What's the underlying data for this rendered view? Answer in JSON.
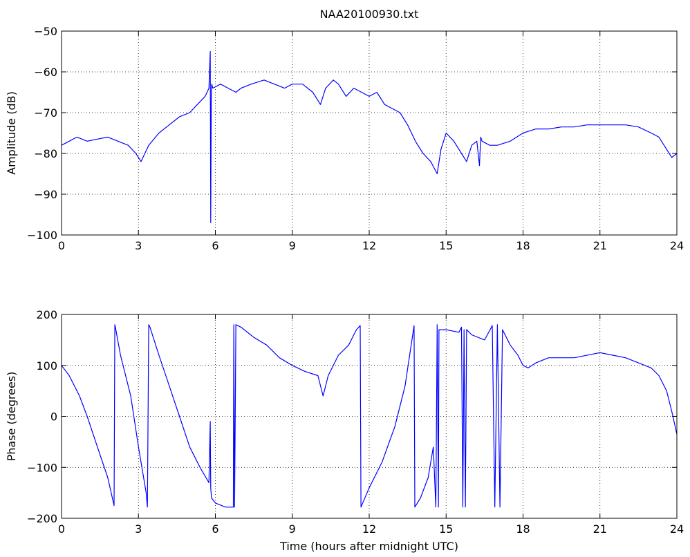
{
  "figure": {
    "title": "NAA20100930.txt"
  },
  "chart_data": [
    {
      "type": "line",
      "title": "NAA20100930.txt",
      "xlabel": "",
      "ylabel": "Amplitude (dB)",
      "xlim": [
        0,
        24
      ],
      "ylim": [
        -100,
        -50
      ],
      "xticks": [
        0,
        3,
        6,
        9,
        12,
        15,
        18,
        21,
        24
      ],
      "yticks": [
        -50,
        -60,
        -70,
        -80,
        -90,
        -100
      ],
      "grid": true,
      "color": "#0000ff",
      "series": [
        {
          "x": [
            0,
            0.3,
            0.6,
            1.0,
            1.4,
            1.8,
            2.2,
            2.6,
            2.9,
            3.1,
            3.4,
            3.8,
            4.2,
            4.6,
            5.0,
            5.3,
            5.6,
            5.75,
            5.8,
            5.82,
            5.84,
            5.86,
            5.9,
            6.2,
            6.5,
            6.8,
            7.0,
            7.4,
            7.9,
            8.3,
            8.7,
            9.0,
            9.4,
            9.8,
            10.1,
            10.3,
            10.6,
            10.8,
            11.1,
            11.4,
            11.7,
            12.0,
            12.3,
            12.6,
            12.9,
            13.2,
            13.5,
            13.8,
            14.1,
            14.4,
            14.65,
            14.8,
            15.0,
            15.3,
            15.6,
            15.8,
            16.0,
            16.2,
            16.3,
            16.35,
            16.4,
            16.7,
            17.0,
            17.5,
            18.0,
            18.5,
            19.0,
            19.5,
            20.0,
            20.5,
            21.0,
            21.5,
            22.0,
            22.5,
            23.0,
            23.3,
            23.6,
            23.8,
            24.0
          ],
          "y": [
            -78,
            -77,
            -76,
            -77,
            -76.5,
            -76,
            -77,
            -78,
            -80,
            -82,
            -78,
            -75,
            -73,
            -71,
            -70,
            -68,
            -66,
            -64,
            -55,
            -97,
            -65,
            -63,
            -64,
            -63,
            -64,
            -65,
            -64,
            -63,
            -62,
            -63,
            -64,
            -63,
            -63,
            -65,
            -68,
            -64,
            -62,
            -63,
            -66,
            -64,
            -65,
            -66,
            -65,
            -68,
            -69,
            -70,
            -73,
            -77,
            -80,
            -82,
            -85,
            -79,
            -75,
            -77,
            -80,
            -82,
            -78,
            -77,
            -83,
            -76,
            -77,
            -78,
            -78,
            -77,
            -75,
            -74,
            -74,
            -73.5,
            -73.5,
            -73,
            -73,
            -73,
            -73,
            -73.5,
            -75,
            -76,
            -79,
            -81,
            -80
          ]
        }
      ]
    },
    {
      "type": "line",
      "title": "",
      "xlabel": "Time (hours after midnight UTC)",
      "ylabel": "Phase (degrees)",
      "xlim": [
        0,
        24
      ],
      "ylim": [
        -200,
        200
      ],
      "xticks": [
        0,
        3,
        6,
        9,
        12,
        15,
        18,
        21,
        24
      ],
      "yticks": [
        200,
        100,
        0,
        -100,
        -200
      ],
      "grid": true,
      "color": "#0000ff",
      "series": [
        {
          "x": [
            0,
            0.3,
            0.7,
            1.0,
            1.4,
            1.8,
            2.05,
            2.08,
            2.1,
            2.3,
            2.7,
            3.0,
            3.3,
            3.35,
            3.4,
            3.45,
            3.8,
            4.2,
            4.6,
            5.0,
            5.4,
            5.75,
            5.8,
            5.82,
            5.85,
            6.0,
            6.4,
            6.7,
            6.72,
            6.75,
            6.8,
            7.0,
            7.5,
            8.0,
            8.5,
            9.0,
            9.5,
            10.0,
            10.2,
            10.4,
            10.8,
            11.2,
            11.5,
            11.65,
            11.68,
            12.0,
            12.5,
            13.0,
            13.4,
            13.75,
            13.78,
            14.0,
            14.3,
            14.5,
            14.6,
            14.65,
            14.7,
            14.72,
            15.0,
            15.5,
            15.6,
            15.65,
            15.7,
            15.75,
            15.8,
            16.0,
            16.5,
            16.8,
            16.9,
            17.0,
            17.1,
            17.2,
            17.5,
            17.8,
            18.0,
            18.2,
            18.5,
            19.0,
            20.0,
            21.0,
            21.5,
            22.0,
            22.5,
            23.0,
            23.3,
            23.6,
            23.8,
            24.0
          ],
          "y": [
            100,
            80,
            40,
            0,
            -60,
            -120,
            -175,
            180,
            175,
            120,
            40,
            -60,
            -150,
            -178,
            180,
            175,
            120,
            60,
            0,
            -60,
            -100,
            -130,
            -10,
            -140,
            -160,
            -170,
            -178,
            -178,
            180,
            -178,
            180,
            175,
            155,
            140,
            115,
            100,
            88,
            80,
            40,
            80,
            120,
            140,
            170,
            178,
            -178,
            -140,
            -90,
            -20,
            60,
            178,
            -178,
            -160,
            -120,
            -60,
            -178,
            180,
            -178,
            170,
            170,
            165,
            175,
            -178,
            170,
            -178,
            170,
            160,
            150,
            178,
            -178,
            180,
            -178,
            170,
            140,
            120,
            100,
            95,
            105,
            115,
            115,
            125,
            120,
            115,
            105,
            95,
            80,
            50,
            10,
            -35
          ]
        }
      ]
    }
  ]
}
